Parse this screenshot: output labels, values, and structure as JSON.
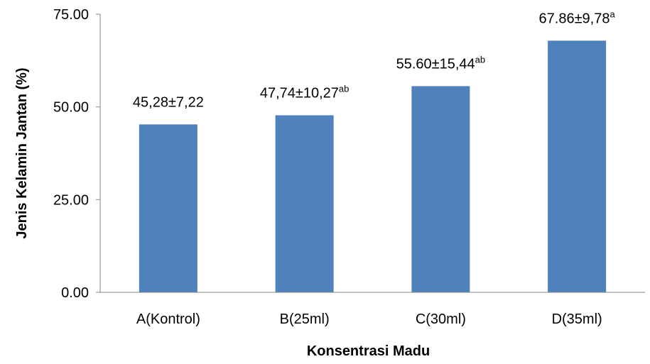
{
  "chart_data": {
    "type": "bar",
    "title": "",
    "xlabel": "Konsentrasi Madu",
    "ylabel": "Jenis Kelamin Jantan (%)",
    "ylim": [
      0,
      75
    ],
    "yticks": [
      "0.00",
      "25.00",
      "50.00",
      "75.00"
    ],
    "ytick_values": [
      0,
      25,
      50,
      75
    ],
    "grid": false,
    "legend": "none",
    "bar_color": "#4f81bd",
    "categories": [
      "A(Kontrol)",
      "B(25ml)",
      "C(30ml)",
      "D(35ml)"
    ],
    "values": [
      45.28,
      47.74,
      55.6,
      67.86
    ],
    "data_labels": [
      {
        "text": "45,28±7,22",
        "sup": ""
      },
      {
        "text": "47,74±10,27",
        "sup": "ab"
      },
      {
        "text": "55.60±15,44",
        "sup": "ab"
      },
      {
        "text": "67.86±9,78",
        "sup": "a"
      }
    ]
  }
}
